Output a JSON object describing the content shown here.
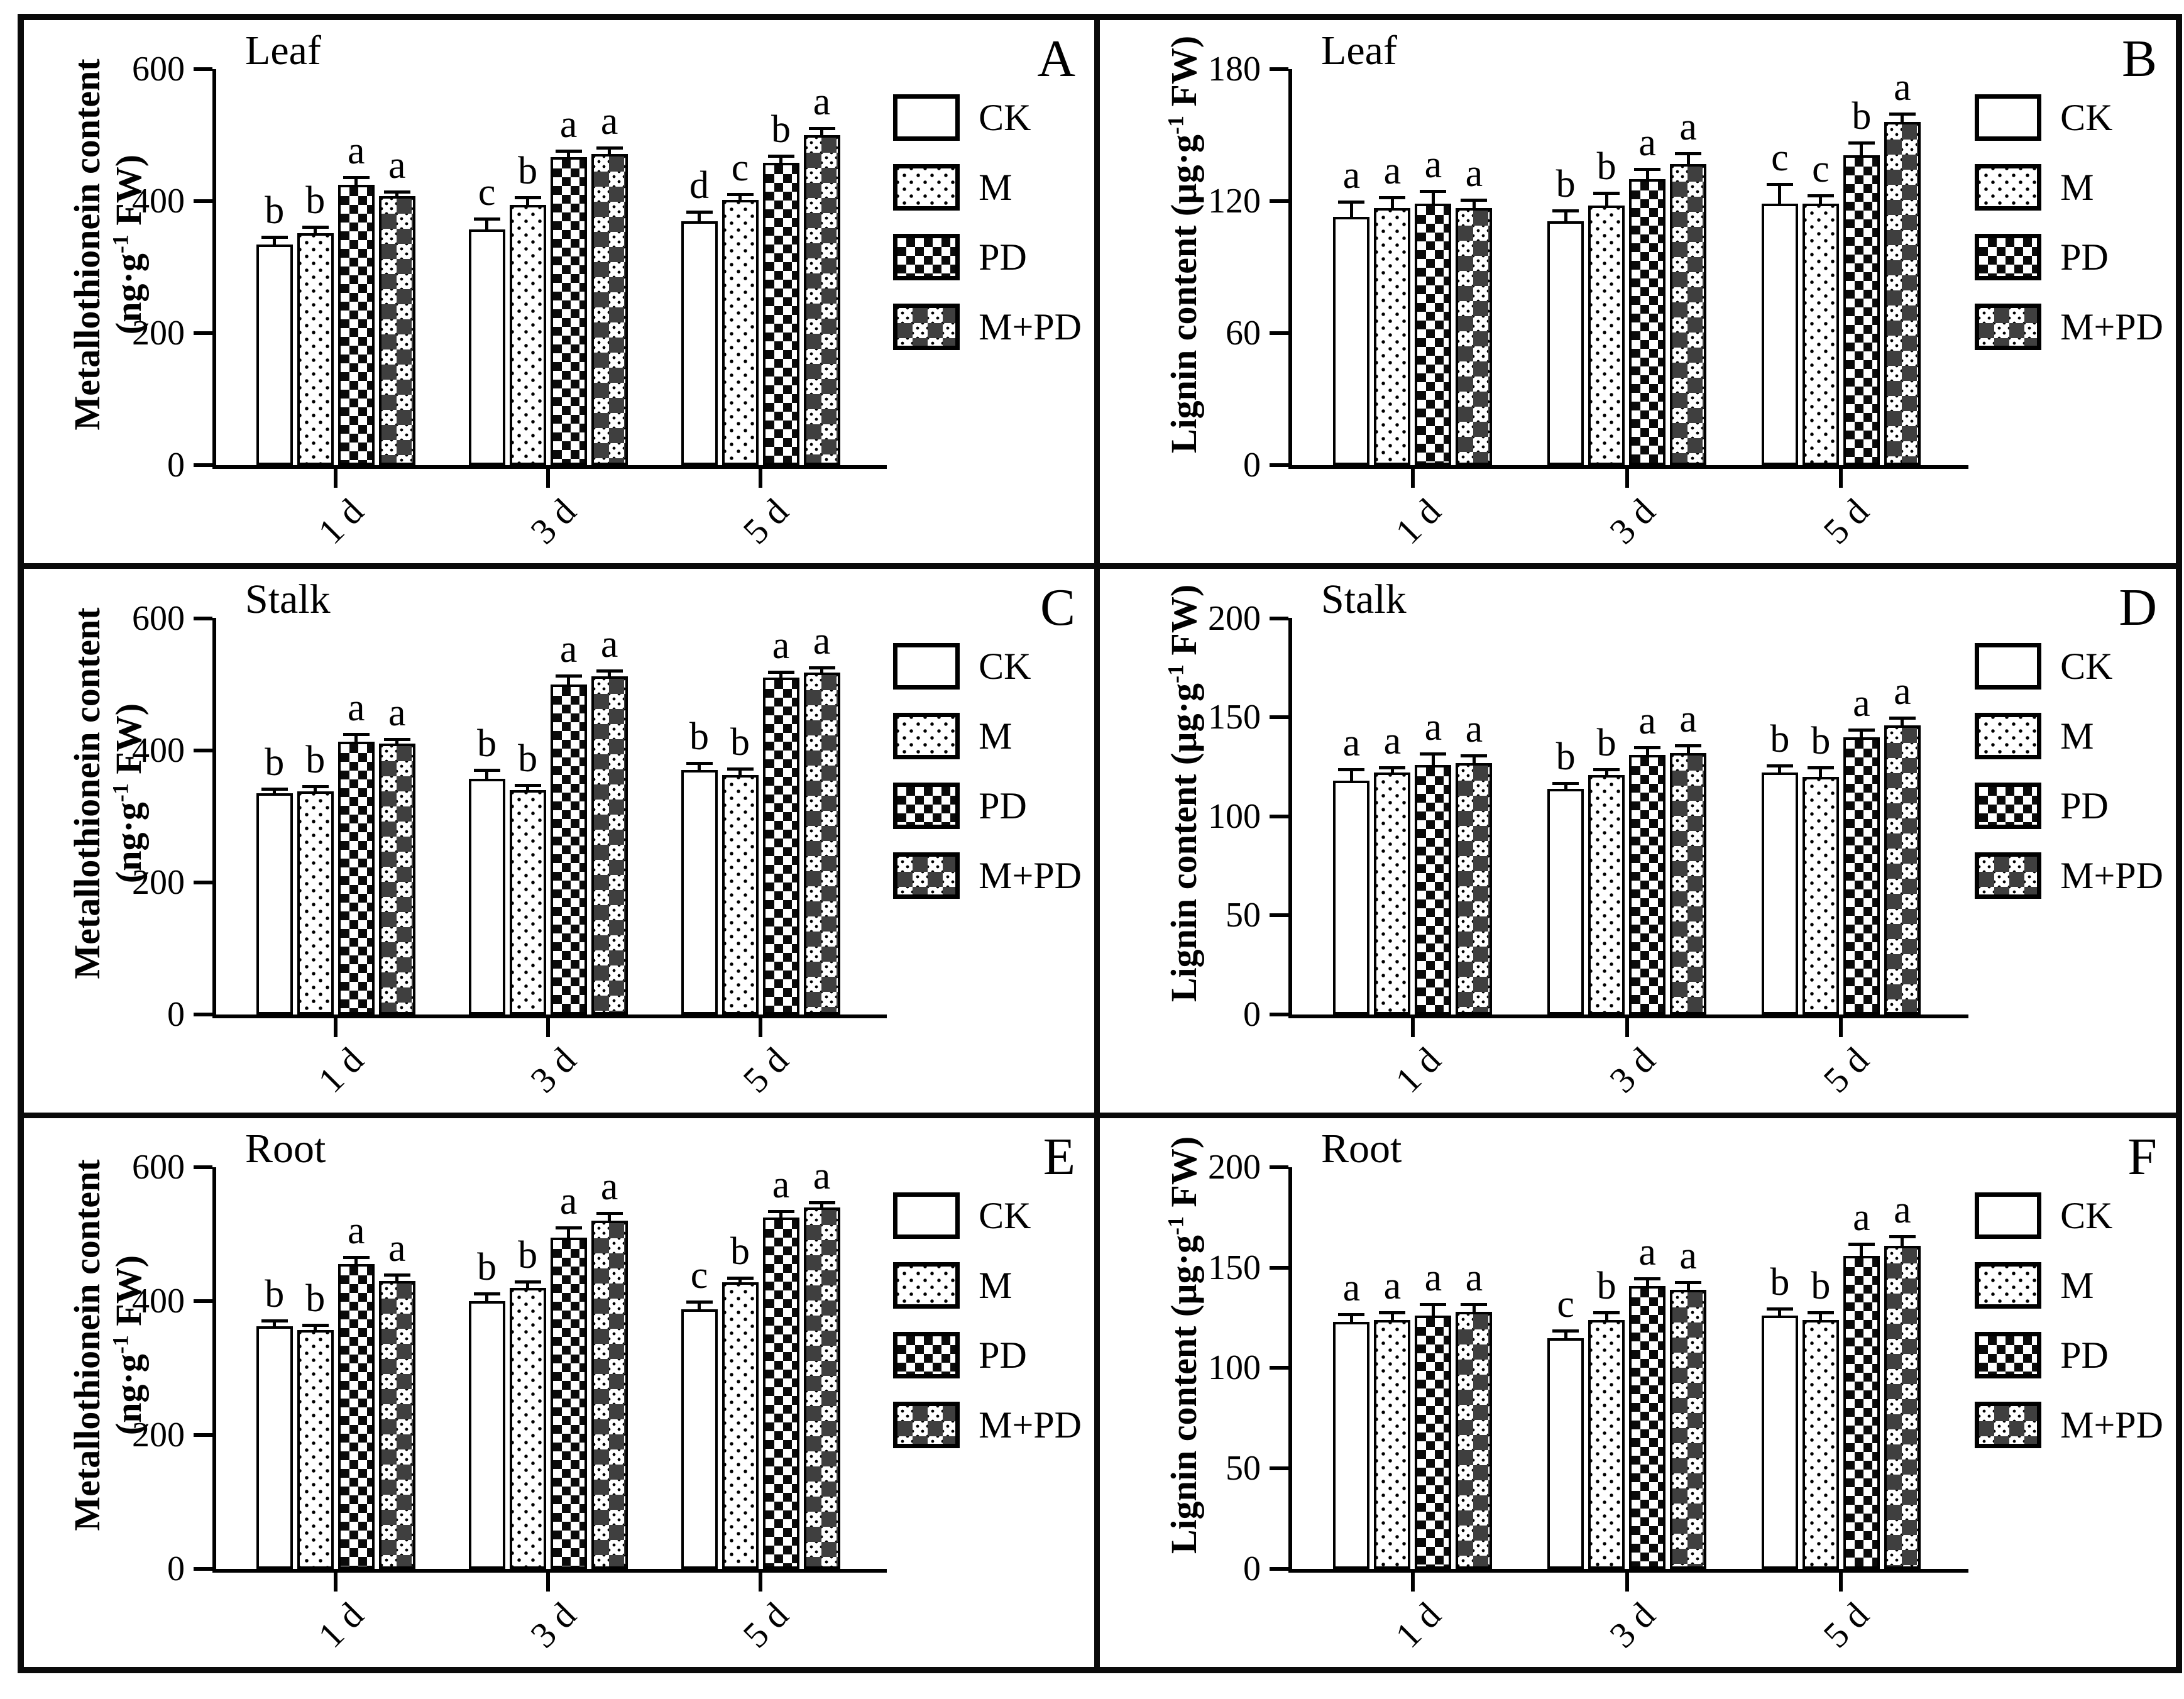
{
  "figure": {
    "legend_labels": [
      "CK",
      "M",
      "PD",
      "M+PD"
    ],
    "legend_patterns": [
      "ck",
      "m",
      "pd",
      "mpd"
    ],
    "categories": [
      "1 d",
      "3 d",
      "5 d"
    ],
    "ink_color": "#000000",
    "background_color": "#ffffff"
  },
  "chart_data": [
    {
      "type": "bar",
      "panel": "A",
      "title": "Leaf",
      "ylabel": {
        "text": "Metallothionein content",
        "unit_pre": "(ng·g",
        "sup": "-1",
        "unit_post": " FW)",
        "layout": "two-line"
      },
      "ylim": [
        0,
        600
      ],
      "yticks": [
        0,
        200,
        400,
        600
      ],
      "categories": [
        "1 d",
        "3 d",
        "5 d"
      ],
      "legend_position": "right",
      "grid": "off",
      "series": [
        {
          "name": "CK",
          "pattern": "ck",
          "values": [
            335,
            357,
            370
          ],
          "errors": [
            12,
            18,
            15
          ],
          "letters": [
            "b",
            "c",
            "d"
          ]
        },
        {
          "name": "M",
          "pattern": "m",
          "values": [
            352,
            395,
            402
          ],
          "errors": [
            10,
            12,
            10
          ],
          "letters": [
            "b",
            "b",
            "c"
          ]
        },
        {
          "name": "PD",
          "pattern": "pd",
          "values": [
            425,
            467,
            458
          ],
          "errors": [
            12,
            10,
            12
          ],
          "letters": [
            "a",
            "a",
            "b"
          ]
        },
        {
          "name": "M+PD",
          "pattern": "mpd",
          "values": [
            408,
            472,
            500
          ],
          "errors": [
            8,
            10,
            12
          ],
          "letters": [
            "a",
            "a",
            "a"
          ]
        }
      ]
    },
    {
      "type": "bar",
      "panel": "B",
      "title": "Leaf",
      "ylabel": {
        "text": "Lignin content",
        "unit_pre": "(µg·g",
        "sup": "-1",
        "unit_post": " FW)",
        "layout": "inline"
      },
      "ylim": [
        0,
        180
      ],
      "yticks": [
        0,
        60,
        120,
        180
      ],
      "categories": [
        "1 d",
        "3 d",
        "5 d"
      ],
      "legend_position": "right",
      "grid": "off",
      "series": [
        {
          "name": "CK",
          "pattern": "ck",
          "values": [
            113,
            111,
            119
          ],
          "errors": [
            7,
            5,
            9
          ],
          "letters": [
            "a",
            "b",
            "c"
          ]
        },
        {
          "name": "M",
          "pattern": "m",
          "values": [
            117,
            118,
            119
          ],
          "errors": [
            5,
            6,
            4
          ],
          "letters": [
            "a",
            "b",
            "c"
          ]
        },
        {
          "name": "PD",
          "pattern": "pd",
          "values": [
            119,
            130,
            141
          ],
          "errors": [
            6,
            5,
            6
          ],
          "letters": [
            "a",
            "a",
            "b"
          ]
        },
        {
          "name": "M+PD",
          "pattern": "mpd",
          "values": [
            117,
            137,
            156
          ],
          "errors": [
            4,
            5,
            4
          ],
          "letters": [
            "a",
            "a",
            "a"
          ]
        }
      ]
    },
    {
      "type": "bar",
      "panel": "C",
      "title": "Stalk",
      "ylabel": {
        "text": "Metallothionein content",
        "unit_pre": "(ng·g",
        "sup": "-1",
        "unit_post": " FW)",
        "layout": "two-line"
      },
      "ylim": [
        0,
        600
      ],
      "yticks": [
        0,
        200,
        400,
        600
      ],
      "categories": [
        "1 d",
        "3 d",
        "5 d"
      ],
      "legend_position": "right",
      "grid": "off",
      "series": [
        {
          "name": "CK",
          "pattern": "ck",
          "values": [
            335,
            357,
            370
          ],
          "errors": [
            8,
            14,
            12
          ],
          "letters": [
            "b",
            "b",
            "b"
          ]
        },
        {
          "name": "M",
          "pattern": "m",
          "values": [
            338,
            340,
            363
          ],
          "errors": [
            8,
            8,
            10
          ],
          "letters": [
            "b",
            "b",
            "b"
          ]
        },
        {
          "name": "PD",
          "pattern": "pd",
          "values": [
            413,
            500,
            510
          ],
          "errors": [
            12,
            14,
            10
          ],
          "letters": [
            "a",
            "a",
            "a"
          ]
        },
        {
          "name": "M+PD",
          "pattern": "mpd",
          "values": [
            410,
            512,
            518
          ],
          "errors": [
            8,
            10,
            8
          ],
          "letters": [
            "a",
            "a",
            "a"
          ]
        }
      ]
    },
    {
      "type": "bar",
      "panel": "D",
      "title": "Stalk",
      "ylabel": {
        "text": "Lignin content",
        "unit_pre": "(µg·g",
        "sup": "-1",
        "unit_post": " FW)",
        "layout": "inline"
      },
      "ylim": [
        0,
        200
      ],
      "yticks": [
        0,
        50,
        100,
        150,
        200
      ],
      "categories": [
        "1 d",
        "3 d",
        "5 d"
      ],
      "legend_position": "right",
      "grid": "off",
      "series": [
        {
          "name": "CK",
          "pattern": "ck",
          "values": [
            118,
            114,
            122
          ],
          "errors": [
            6,
            3,
            4
          ],
          "letters": [
            "a",
            "b",
            "b"
          ]
        },
        {
          "name": "M",
          "pattern": "m",
          "values": [
            122,
            121,
            120
          ],
          "errors": [
            3,
            3,
            5
          ],
          "letters": [
            "a",
            "b",
            "b"
          ]
        },
        {
          "name": "PD",
          "pattern": "pd",
          "values": [
            126,
            131,
            140
          ],
          "errors": [
            6,
            4,
            4
          ],
          "letters": [
            "a",
            "a",
            "a"
          ]
        },
        {
          "name": "M+PD",
          "pattern": "mpd",
          "values": [
            127,
            132,
            146
          ],
          "errors": [
            4,
            4,
            4
          ],
          "letters": [
            "a",
            "a",
            "a"
          ]
        }
      ]
    },
    {
      "type": "bar",
      "panel": "E",
      "title": "Root",
      "ylabel": {
        "text": "Metallothionein content",
        "unit_pre": "(ng·g",
        "sup": "-1",
        "unit_post": " FW)",
        "layout": "two-line"
      },
      "ylim": [
        0,
        600
      ],
      "yticks": [
        0,
        200,
        400,
        600
      ],
      "categories": [
        "1 d",
        "3 d",
        "5 d"
      ],
      "legend_position": "right",
      "grid": "off",
      "series": [
        {
          "name": "CK",
          "pattern": "ck",
          "values": [
            362,
            400,
            388
          ],
          "errors": [
            10,
            12,
            12
          ],
          "letters": [
            "b",
            "b",
            "c"
          ]
        },
        {
          "name": "M",
          "pattern": "m",
          "values": [
            357,
            420,
            428
          ],
          "errors": [
            8,
            10,
            8
          ],
          "letters": [
            "b",
            "b",
            "b"
          ]
        },
        {
          "name": "PD",
          "pattern": "pd",
          "values": [
            455,
            495,
            525
          ],
          "errors": [
            12,
            16,
            10
          ],
          "letters": [
            "a",
            "a",
            "a"
          ]
        },
        {
          "name": "M+PD",
          "pattern": "mpd",
          "values": [
            430,
            520,
            540
          ],
          "errors": [
            10,
            12,
            8
          ],
          "letters": [
            "a",
            "a",
            "a"
          ]
        }
      ]
    },
    {
      "type": "bar",
      "panel": "F",
      "title": "Root",
      "ylabel": {
        "text": "Lignin content",
        "unit_pre": "(µg·g",
        "sup": "-1",
        "unit_post": " FW)",
        "layout": "inline"
      },
      "ylim": [
        0,
        200
      ],
      "yticks": [
        0,
        50,
        100,
        150,
        200
      ],
      "categories": [
        "1 d",
        "3 d",
        "5 d"
      ],
      "legend_position": "right",
      "grid": "off",
      "series": [
        {
          "name": "CK",
          "pattern": "ck",
          "values": [
            123,
            115,
            126
          ],
          "errors": [
            4,
            4,
            4
          ],
          "letters": [
            "a",
            "c",
            "b"
          ]
        },
        {
          "name": "M",
          "pattern": "m",
          "values": [
            124,
            124,
            124
          ],
          "errors": [
            4,
            4,
            4
          ],
          "letters": [
            "a",
            "b",
            "b"
          ]
        },
        {
          "name": "PD",
          "pattern": "pd",
          "values": [
            126,
            141,
            156
          ],
          "errors": [
            6,
            4,
            6
          ],
          "letters": [
            "a",
            "a",
            "a"
          ]
        },
        {
          "name": "M+PD",
          "pattern": "mpd",
          "values": [
            128,
            139,
            161
          ],
          "errors": [
            4,
            4,
            5
          ],
          "letters": [
            "a",
            "a",
            "a"
          ]
        }
      ]
    }
  ]
}
